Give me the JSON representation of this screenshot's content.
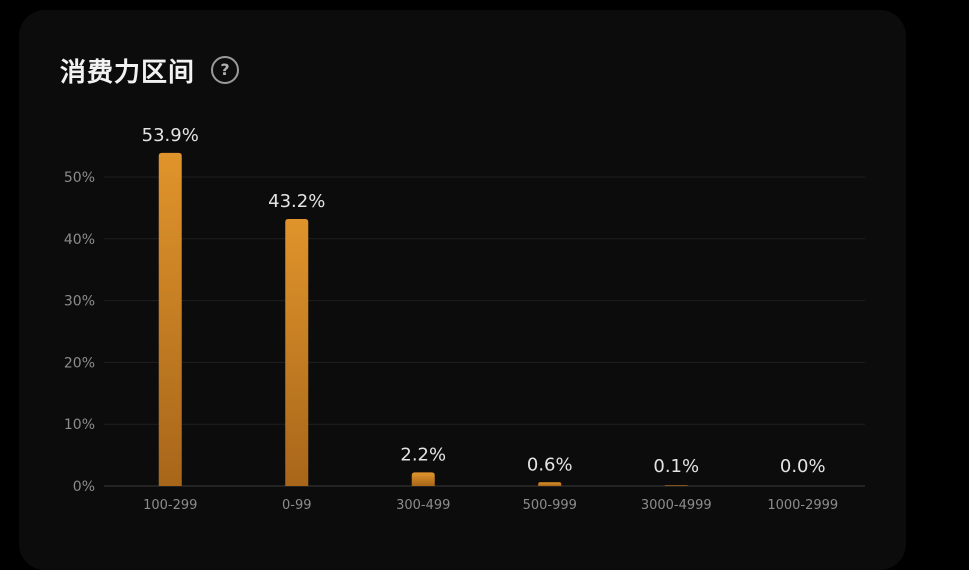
{
  "card": {
    "title": "消费力区间",
    "help_icon": "?"
  },
  "chart_data": {
    "type": "bar",
    "categories": [
      "100-299",
      "0-99",
      "300-499",
      "500-999",
      "3000-4999",
      "1000-2999"
    ],
    "values": [
      53.9,
      43.2,
      2.2,
      0.6,
      0.1,
      0.0
    ],
    "value_labels": [
      "53.9%",
      "43.2%",
      "2.2%",
      "0.6%",
      "0.1%",
      "0.0%"
    ],
    "ylim": [
      0,
      50
    ],
    "yticks": [
      "0%",
      "10%",
      "20%",
      "30%",
      "40%",
      "50%"
    ],
    "ytick_values": [
      0,
      10,
      20,
      30,
      40,
      50
    ],
    "grid": true,
    "bar_color_top": "#e0942b",
    "bar_color_bottom": "#a8661a",
    "title": "消费力区间",
    "xlabel": "",
    "ylabel": ""
  }
}
